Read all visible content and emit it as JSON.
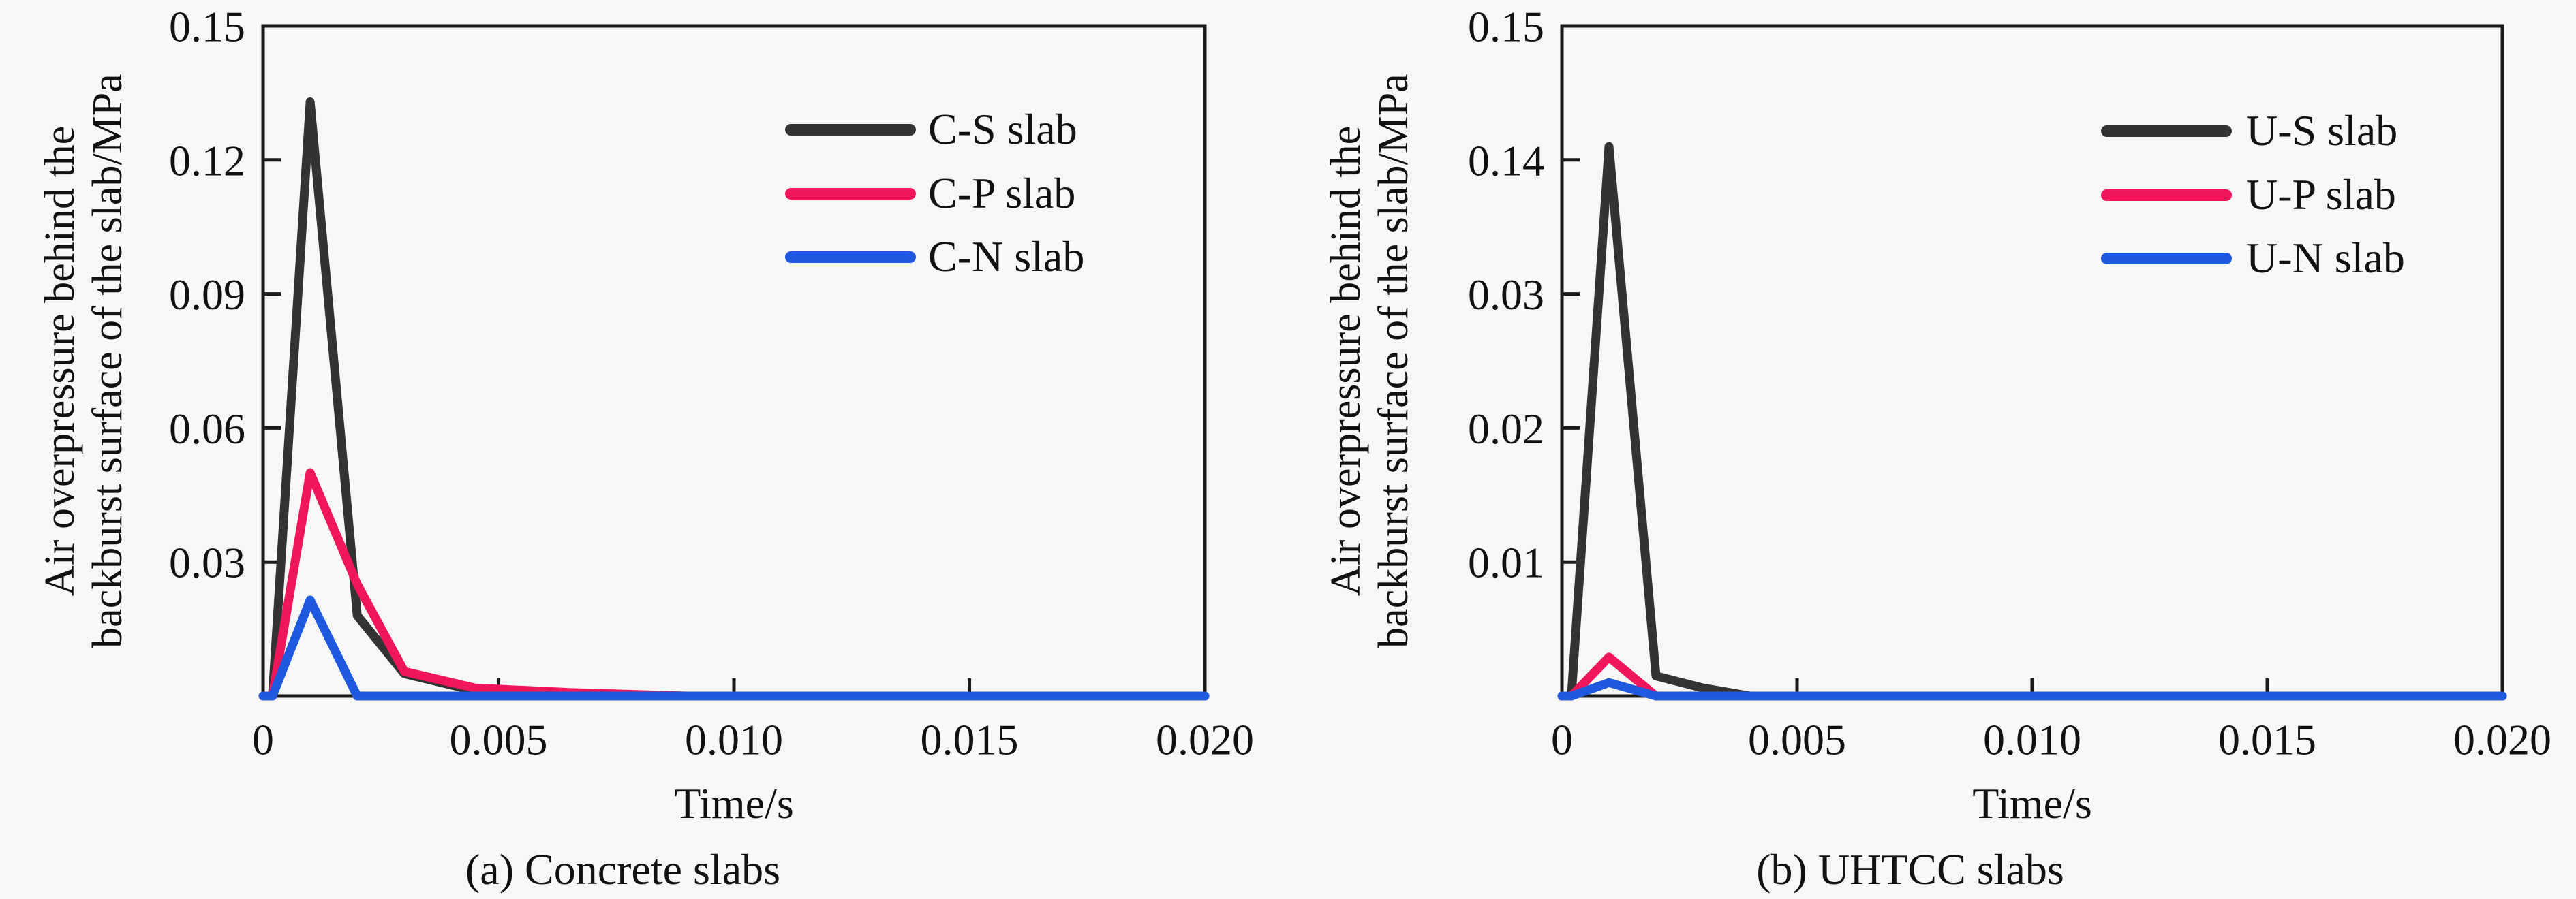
{
  "page": {
    "background": "#f7f7f7",
    "text_color": "#111111",
    "axis_color": "#1a1a1a"
  },
  "chart_data": [
    {
      "type": "line",
      "panel": "a",
      "caption": "(a) Concrete slabs",
      "xlabel": "Time/s",
      "ylabel": "Air overpressure behind the backburst surface of the slab/MPa",
      "ylabel_line1": "Air overpressure behind the",
      "ylabel_line2": "backburst surface of the slab/MPa",
      "xlim": [
        0,
        0.02
      ],
      "x_tick_values": [
        0,
        0.005,
        0.01,
        0.015,
        0.02
      ],
      "x_tick_labels": [
        "0",
        "0.005",
        "0.010",
        "0.015",
        "0.020"
      ],
      "y_axis": "linear",
      "ylim": [
        0,
        0.15
      ],
      "y_tick_values": [
        0.03,
        0.06,
        0.09,
        0.12,
        0.15
      ],
      "y_tick_labels": [
        "0.03",
        "0.06",
        "0.09",
        "0.12",
        "0.15"
      ],
      "grid": false,
      "legend_position": "upper right inside",
      "series": [
        {
          "name": "C-S slab",
          "color": "#333333",
          "points": [
            [
              0,
              0
            ],
            [
              0.0002,
              0
            ],
            [
              0.001,
              0.133
            ],
            [
              0.002,
              0.018
            ],
            [
              0.003,
              0.005
            ],
            [
              0.0045,
              0.0012
            ],
            [
              0.006,
              0.0002
            ],
            [
              0.008,
              0
            ],
            [
              0.02,
              0
            ]
          ]
        },
        {
          "name": "C-P slab",
          "color": "#f1155c",
          "points": [
            [
              0,
              0
            ],
            [
              0.0002,
              0
            ],
            [
              0.001,
              0.05
            ],
            [
              0.002,
              0.025
            ],
            [
              0.003,
              0.0055
            ],
            [
              0.0045,
              0.0018
            ],
            [
              0.0065,
              0.0008
            ],
            [
              0.009,
              0
            ],
            [
              0.02,
              0
            ]
          ]
        },
        {
          "name": "C-N slab",
          "color": "#1e5ae0",
          "points": [
            [
              0,
              0
            ],
            [
              0.0002,
              0
            ],
            [
              0.001,
              0.0215
            ],
            [
              0.002,
              0
            ],
            [
              0.02,
              0
            ]
          ]
        }
      ]
    },
    {
      "type": "line",
      "panel": "b",
      "caption": "(b) UHTCC slabs",
      "xlabel": "Time/s",
      "ylabel": "Air overpressure behind the backburst surface of the slab/MPa",
      "ylabel_line1": "Air overpressure behind the",
      "ylabel_line2": "backburst surface of the slab/MPa",
      "xlim": [
        0,
        0.02
      ],
      "x_tick_values": [
        0,
        0.005,
        0.01,
        0.015,
        0.02
      ],
      "x_tick_labels": [
        "0",
        "0.005",
        "0.010",
        "0.015",
        "0.020"
      ],
      "y_axis": "broken: ticks equally spaced but values non-linear (axis compressed between 0.03 and 0.14)",
      "ylim": [
        0,
        0.15
      ],
      "y_tick_values": [
        0.01,
        0.02,
        0.03,
        0.14,
        0.15
      ],
      "y_tick_labels": [
        "0.01",
        "0.02",
        "0.03",
        "0.14",
        "0.15"
      ],
      "grid": false,
      "legend_position": "upper right inside",
      "series": [
        {
          "name": "U-S slab",
          "color": "#333333",
          "points": [
            [
              0,
              0
            ],
            [
              0.0002,
              0
            ],
            [
              0.001,
              0.141
            ],
            [
              0.002,
              0.0015
            ],
            [
              0.003,
              0.0006
            ],
            [
              0.004,
              0
            ],
            [
              0.02,
              0
            ]
          ]
        },
        {
          "name": "U-P slab",
          "color": "#f1155c",
          "points": [
            [
              0,
              0
            ],
            [
              0.0002,
              0
            ],
            [
              0.001,
              0.0029
            ],
            [
              0.002,
              0
            ],
            [
              0.02,
              0
            ]
          ]
        },
        {
          "name": "U-N slab",
          "color": "#1e5ae0",
          "points": [
            [
              0,
              0
            ],
            [
              0.0002,
              0
            ],
            [
              0.001,
              0.001
            ],
            [
              0.002,
              0
            ],
            [
              0.02,
              0
            ]
          ]
        }
      ]
    }
  ]
}
